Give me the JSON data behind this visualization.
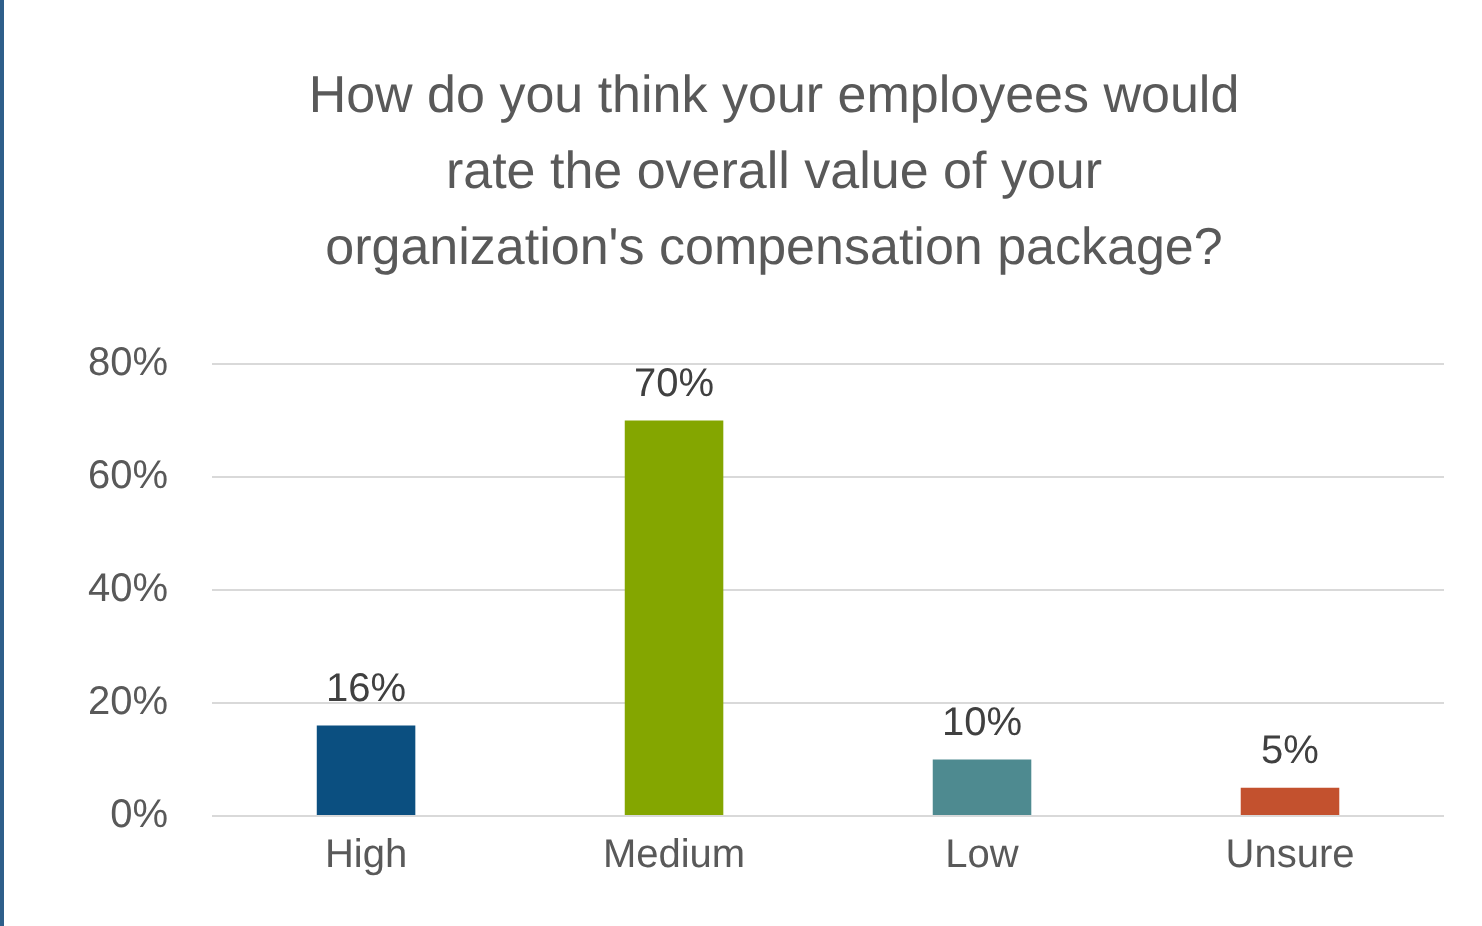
{
  "chart_data": {
    "type": "bar",
    "title": "How do you think your employees would rate the overall value of your organization's compensation package?",
    "categories": [
      "High",
      "Medium",
      "Low",
      "Unsure"
    ],
    "values": [
      16,
      70,
      10,
      5
    ],
    "colors": [
      "#0b4f80",
      "#84a600",
      "#4e8a90",
      "#c3512e"
    ],
    "ylim": [
      0,
      80
    ],
    "yticks": [
      {
        "value": 0,
        "label": "0%"
      },
      {
        "value": 20,
        "label": "20%"
      },
      {
        "value": 40,
        "label": "40%"
      },
      {
        "value": 60,
        "label": "60%"
      },
      {
        "value": 80,
        "label": "80%"
      }
    ],
    "value_labels": [
      "16%",
      "70%",
      "10%",
      "5%"
    ],
    "grid": "y"
  }
}
